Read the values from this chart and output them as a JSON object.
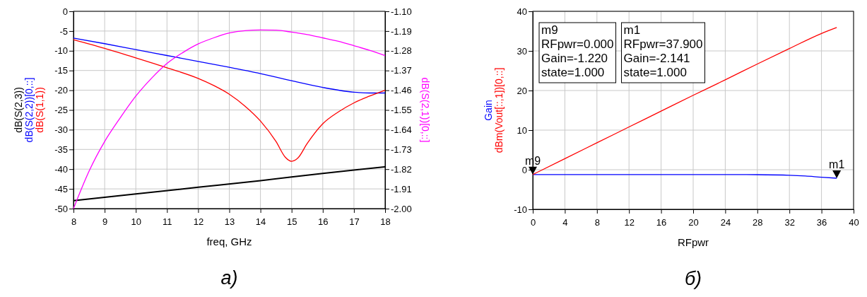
{
  "chart_data": [
    {
      "type": "line",
      "xlabel": "freq, GHz",
      "xlim": [
        8,
        18
      ],
      "xticks": [
        8,
        9,
        10,
        11,
        12,
        13,
        14,
        15,
        16,
        17,
        18
      ],
      "ylim": [
        -50,
        0
      ],
      "yticks": [
        -50,
        -45,
        -40,
        -35,
        -30,
        -25,
        -20,
        -15,
        -10,
        -5,
        0
      ],
      "y2lim": [
        -2.0,
        -1.1
      ],
      "y2ticks": [
        {
          "value": -2.0,
          "label": "-2.00"
        },
        {
          "value": -1.91,
          "label": "-1.91"
        },
        {
          "value": -1.82,
          "label": "-1.82"
        },
        {
          "value": -1.73,
          "label": "-1.73"
        },
        {
          "value": -1.64,
          "label": "-1.64"
        },
        {
          "value": -1.55,
          "label": "-1.55"
        },
        {
          "value": -1.46,
          "label": "-1.46"
        },
        {
          "value": -1.37,
          "label": "-1.37"
        },
        {
          "value": -1.28,
          "label": "-1.28"
        },
        {
          "value": -1.19,
          "label": "-1.19"
        },
        {
          "value": -1.1,
          "label": "-1.10"
        }
      ],
      "grid": true,
      "legend": false,
      "line_style": "solid",
      "marker": "none",
      "series": [
        {
          "name": "dB(S(2,3))",
          "color": "#000000",
          "x": [
            8,
            10,
            12,
            14,
            16,
            18
          ],
          "values": [
            -48,
            -46.3,
            -44.6,
            -42.9,
            -41.1,
            -39.4
          ]
        },
        {
          "name": "dB(S(2,2))[0,::]",
          "color": "#0000ff",
          "x": [
            8,
            9,
            10,
            11,
            12,
            13,
            14,
            15,
            16,
            17,
            17.5,
            18
          ],
          "values": [
            -6.8,
            -8.2,
            -9.7,
            -11.2,
            -12.7,
            -14.2,
            -15.8,
            -17.6,
            -19.3,
            -20.5,
            -20.7,
            -20.7
          ]
        },
        {
          "name": "dB(S(1,1))",
          "color": "#ff0000",
          "x": [
            8,
            9,
            10,
            11,
            12,
            12.5,
            13,
            13.5,
            14,
            14.5,
            14.8,
            15,
            15.2,
            15.5,
            16,
            16.5,
            17,
            17.5,
            18
          ],
          "values": [
            -7.2,
            -9.4,
            -11.8,
            -14.3,
            -17,
            -18.8,
            -21,
            -24,
            -27.8,
            -33,
            -37,
            -38,
            -37.2,
            -33.5,
            -28.5,
            -25.5,
            -23.2,
            -21.5,
            -20
          ]
        },
        {
          "name": "dB(S(2,1))[0,::]",
          "color": "#ff00ff",
          "axis": "y2",
          "x": [
            8,
            8.5,
            9,
            9.5,
            10,
            10.5,
            11,
            11.5,
            12,
            12.5,
            13,
            13.5,
            14,
            14.5,
            15,
            15.5,
            16,
            16.5,
            17,
            17.5,
            18
          ],
          "values": [
            -2.0,
            -1.829,
            -1.694,
            -1.586,
            -1.487,
            -1.406,
            -1.338,
            -1.289,
            -1.249,
            -1.221,
            -1.199,
            -1.188,
            -1.185,
            -1.186,
            -1.195,
            -1.206,
            -1.221,
            -1.237,
            -1.257,
            -1.278,
            -1.302
          ]
        }
      ],
      "annotations": [
        "a)"
      ]
    },
    {
      "type": "line",
      "xlabel": "RFpwr",
      "xlim": [
        0,
        40
      ],
      "xticks": [
        0,
        4,
        8,
        12,
        16,
        20,
        24,
        28,
        32,
        36,
        40
      ],
      "ylim": [
        -10,
        40
      ],
      "yticks": [
        -10,
        0,
        10,
        20,
        30,
        40
      ],
      "grid": true,
      "legend": false,
      "line_style": "solid",
      "marker": "none",
      "series": [
        {
          "name": "Gain",
          "color": "#0000ff",
          "x": [
            0,
            8,
            16,
            24,
            28,
            32,
            34,
            36,
            37.9
          ],
          "values": [
            -1.22,
            -1.22,
            -1.22,
            -1.22,
            -1.25,
            -1.4,
            -1.6,
            -1.9,
            -2.141
          ]
        },
        {
          "name": "dBm(Vout[::,1])[0,::]",
          "color": "#ff0000",
          "x": [
            0,
            4,
            8,
            12,
            16,
            20,
            24,
            28,
            32,
            36,
            37.9
          ],
          "values": [
            -1.22,
            2.8,
            6.8,
            10.8,
            14.8,
            18.8,
            22.7,
            26.7,
            30.6,
            34.4,
            35.9
          ]
        }
      ],
      "annotations": [
        {
          "text": "m9",
          "x": 0,
          "y": -1.22
        },
        {
          "text": "m1",
          "x": 37.9,
          "y": -2.141
        },
        "m9\nRFpwr=0.000\nGain=-1.220\nstate=1.000",
        "m1\nRFpwr=37.900\nGain=-2.141\nstate=1.000",
        "б)"
      ]
    }
  ]
}
